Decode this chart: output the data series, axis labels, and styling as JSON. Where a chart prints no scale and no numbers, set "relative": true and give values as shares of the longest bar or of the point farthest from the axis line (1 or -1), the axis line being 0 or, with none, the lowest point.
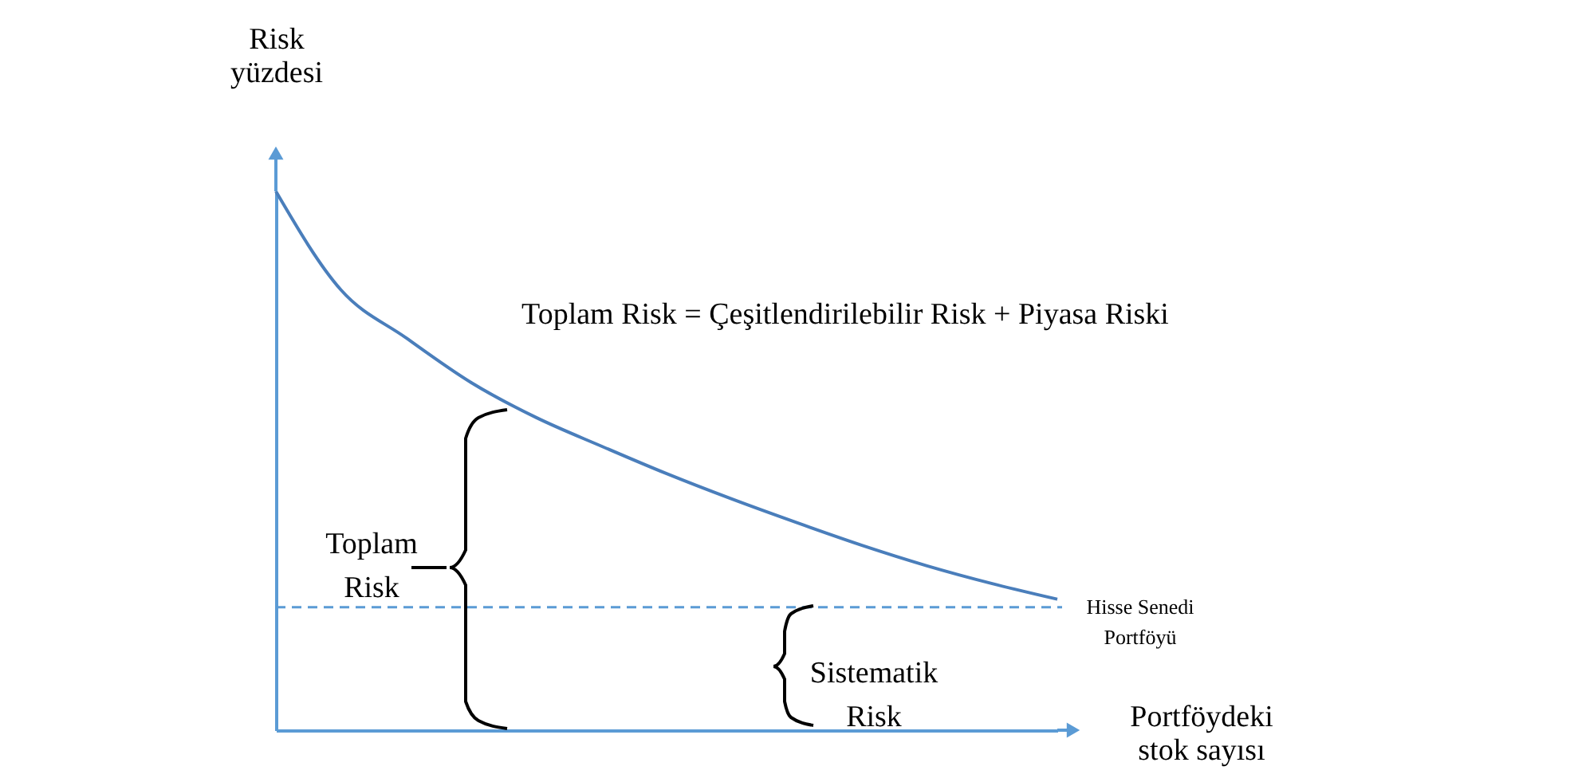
{
  "chart_data": {
    "type": "line",
    "relative": true,
    "xlabel": "Portföydeki stok sayısı",
    "ylabel": "Risk yüzdesi",
    "categories": [
      null,
      null,
      null,
      null,
      null,
      null,
      null,
      null,
      null,
      null,
      null,
      null,
      null
    ],
    "series": [
      {
        "color": "#4a7ebb",
        "values": [
          1,
          0.817,
          0.728,
          0.645,
          0.58,
          0.527,
          0.476,
          0.429,
          0.385,
          0.343,
          0.305,
          0.272,
          0.243
        ]
      }
    ],
    "ref_lines": [
      {
        "axis": "y",
        "value": 0.228,
        "color": "#5b9bd5",
        "line_style": "dashed"
      }
    ],
    "annotations": [
      "Toplam Risk = Çeşitlendirilebilir Risk + Piyasa Riski",
      "Toplam Risk",
      "Sistematik Risk",
      "Hisse Senedi Portföyü"
    ],
    "grid": false,
    "marker": "none",
    "line_style": "solid"
  }
}
